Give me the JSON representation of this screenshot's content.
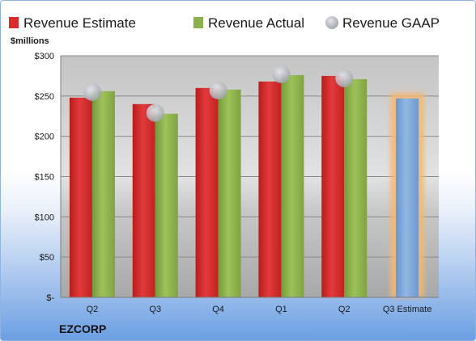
{
  "chart_data": {
    "type": "bar",
    "title": "",
    "company": "EZCORP",
    "ylabel": "$millions",
    "xlabel": "",
    "ylim": [
      0,
      300
    ],
    "yticks": [
      {
        "value": 0,
        "label": "$-"
      },
      {
        "value": 50,
        "label": "$50"
      },
      {
        "value": 100,
        "label": "$100"
      },
      {
        "value": 150,
        "label": "$150"
      },
      {
        "value": 200,
        "label": "$200"
      },
      {
        "value": 250,
        "label": "$250"
      },
      {
        "value": 300,
        "label": "$300"
      }
    ],
    "categories": [
      "Q2",
      "Q3",
      "Q4",
      "Q1",
      "Q2",
      "Q3 Estimate"
    ],
    "legend_position": "top",
    "grid": true,
    "series": [
      {
        "name": "Revenue Estimate",
        "kind": "bar",
        "color": "#d92b2b",
        "values": [
          248,
          240,
          260,
          268,
          275,
          null
        ]
      },
      {
        "name": "Revenue Actual",
        "kind": "bar",
        "color": "#8cb04a",
        "values": [
          256,
          228,
          258,
          276,
          271,
          null
        ]
      },
      {
        "name": "Revenue GAAP",
        "kind": "marker",
        "color": "#b9bcc2",
        "values": [
          255,
          229,
          257,
          277,
          272,
          null
        ]
      }
    ],
    "estimate_bar": {
      "category": "Q3 Estimate",
      "value": 247,
      "color": "#7ea6d8",
      "glow": "#f5b871"
    }
  }
}
